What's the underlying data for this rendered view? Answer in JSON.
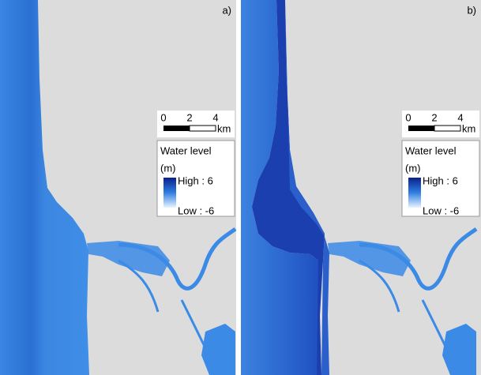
{
  "panels": [
    {
      "label": "a)",
      "scale": {
        "ticks": [
          0,
          2,
          4
        ],
        "unit": "km"
      },
      "legend": {
        "title": "Water level",
        "unit": "(m)",
        "high": "High : 6",
        "low": "Low : -6"
      }
    },
    {
      "label": "b)",
      "scale": {
        "ticks": [
          0,
          2,
          4
        ],
        "unit": "km"
      },
      "legend": {
        "title": "Water level",
        "unit": "(m)",
        "high": "High : 6",
        "low": "Low : -6"
      }
    }
  ]
}
